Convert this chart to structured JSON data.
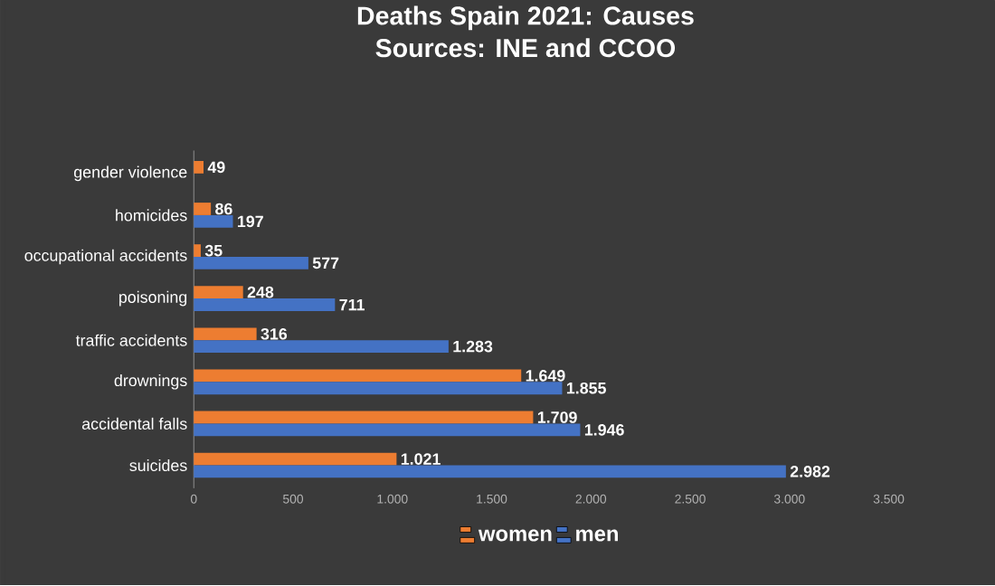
{
  "chart_data": {
    "type": "bar",
    "orientation": "horizontal",
    "title": "Deaths Spain 2021: Causes",
    "subtitle": "Sources: INE and CCOO",
    "categories": [
      "gender violence",
      "homicides",
      "occupational accidents",
      "poisoning",
      "traffic accidents",
      "drownings",
      "accidental falls",
      "suicides"
    ],
    "series": [
      {
        "name": "women",
        "color": "#ed7d31",
        "values": [
          49,
          86,
          35,
          248,
          316,
          1649,
          1709,
          1021
        ],
        "value_labels": [
          "49",
          "86",
          "35",
          "248",
          "316",
          "1.649",
          "1.709",
          "1.021"
        ]
      },
      {
        "name": "men",
        "color": "#4472c4",
        "values": [
          null,
          197,
          577,
          711,
          1283,
          1855,
          1946,
          2982
        ],
        "value_labels": [
          null,
          "197",
          "577",
          "711",
          "1.283",
          "1.855",
          "1.946",
          "2.982"
        ]
      }
    ],
    "xlim": [
      0,
      3500
    ],
    "xticks": [
      0,
      500,
      {
        "value": 1000,
        "label": "1.000"
      },
      {
        "value": 1500,
        "label": "1.500"
      },
      {
        "value": 2000,
        "label": "2.000"
      },
      {
        "value": 2500,
        "label": "2.500"
      },
      {
        "value": 3000,
        "label": "3.000"
      },
      {
        "value": 3500,
        "label": "3.500"
      }
    ],
    "legend": "bottom"
  }
}
